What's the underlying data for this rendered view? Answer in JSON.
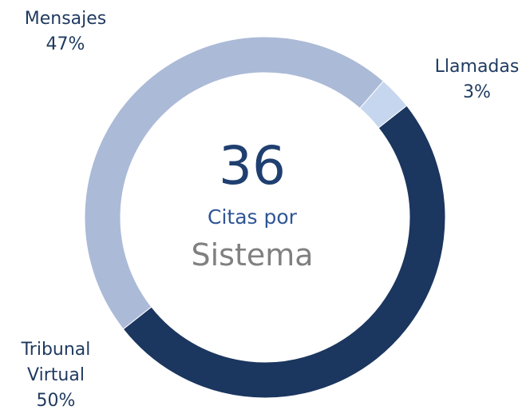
{
  "chart_data": {
    "type": "donut",
    "categories": [
      "Llamadas",
      "Tribunal Virtual",
      "Mensajes"
    ],
    "values": [
      3,
      50,
      47
    ],
    "value_labels": [
      "3%",
      "50%",
      "47%"
    ],
    "colors": [
      "#c6d6ef",
      "#1b365f",
      "#abbad7"
    ],
    "center_number": "36",
    "center_line1": "Citas por",
    "center_line2": "Sistema"
  }
}
